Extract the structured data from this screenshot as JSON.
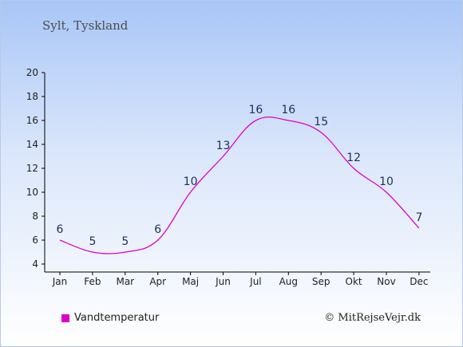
{
  "header": {
    "title": "Sylt, Tyskland"
  },
  "legend": {
    "label": "Vandtemperatur"
  },
  "footer": {
    "copyright": "© MitRejseVejr.dk"
  },
  "colors": {
    "line": "#dd00cc",
    "axis": "#000000"
  },
  "chart_data": {
    "type": "line",
    "title": "Sylt, Tyskland",
    "categories": [
      "Jan",
      "Feb",
      "Mar",
      "Apr",
      "Maj",
      "Jun",
      "Jul",
      "Aug",
      "Sep",
      "Okt",
      "Nov",
      "Dec"
    ],
    "series": [
      {
        "name": "Vandtemperatur",
        "values": [
          6,
          5,
          5,
          6,
          10,
          13,
          16,
          16,
          15,
          12,
          10,
          7
        ]
      }
    ],
    "yticks": [
      4,
      6,
      8,
      10,
      12,
      14,
      16,
      18,
      20
    ],
    "ylim": [
      4,
      20
    ],
    "grid": false,
    "legend_position": "bottom-left"
  }
}
